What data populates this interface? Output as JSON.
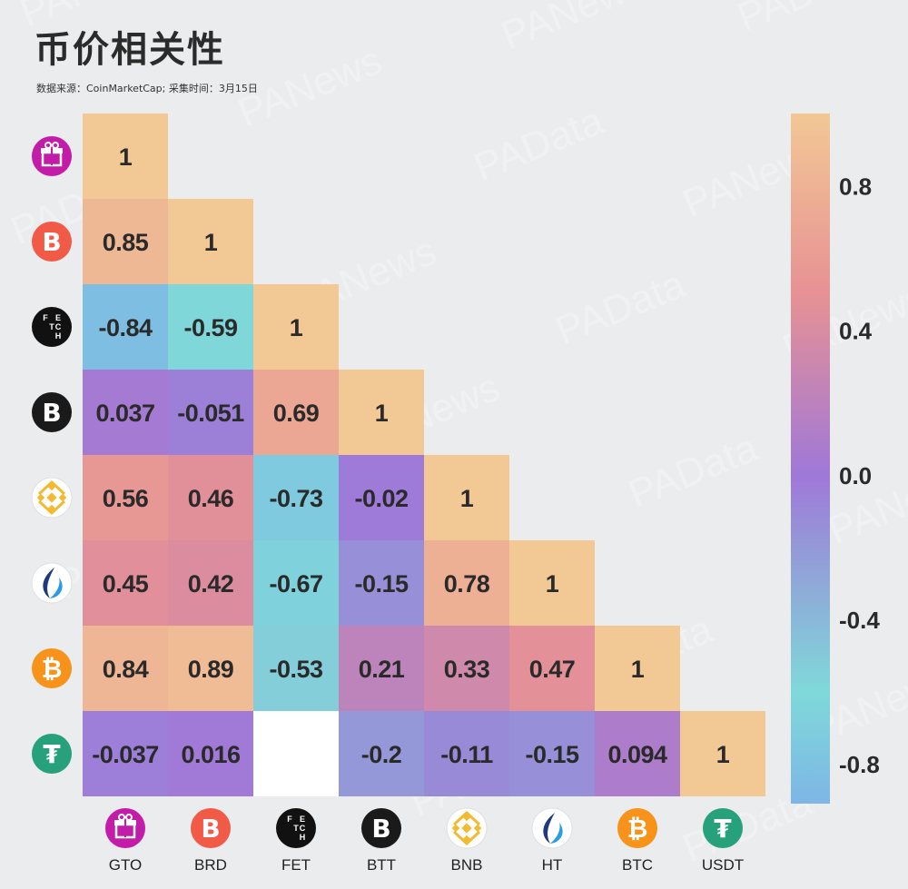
{
  "title": "币价相关性",
  "subtitle": "数据来源：CoinMarketCap;   采集时间：3月15日",
  "watermark": [
    "PANews",
    "PAData"
  ],
  "chart_data": {
    "type": "heatmap",
    "layout": "lower-triangle",
    "coins": [
      "GTO",
      "BRD",
      "FET",
      "BTT",
      "BNB",
      "HT",
      "BTC",
      "USDT"
    ],
    "matrix": [
      [
        "1"
      ],
      [
        "0.85",
        "1"
      ],
      [
        "-0.84",
        "-0.59",
        "1"
      ],
      [
        "0.037",
        "-0.051",
        "0.69",
        "1"
      ],
      [
        "0.56",
        "0.46",
        "-0.73",
        "-0.02",
        "1"
      ],
      [
        "0.45",
        "0.42",
        "-0.67",
        "-0.15",
        "0.78",
        "1"
      ],
      [
        "0.84",
        "0.89",
        "-0.53",
        "0.21",
        "0.33",
        "0.47",
        "1"
      ],
      [
        "-0.037",
        "0.016",
        null,
        "-0.2",
        "-0.11",
        "-0.15",
        "0.094",
        "1"
      ]
    ],
    "colorbar": {
      "ticks": [
        "0.8",
        "0.4",
        "0.0",
        "-0.4",
        "-0.8"
      ],
      "range": [
        -0.91,
        1.0
      ],
      "colors": {
        "-0.91": "#7eb6e6",
        "-0.6": "#7fd9d9",
        "0.0": "#9f78d8",
        "0.5": "#e79194",
        "1.0": "#f2c895"
      }
    },
    "icons": {
      "GTO": {
        "bg": "#c31ca8",
        "glyph": "gift-icon"
      },
      "BRD": {
        "bg": "#f15a46",
        "glyph": "B"
      },
      "FET": {
        "bg": "#111111",
        "glyph": "fetch-icon"
      },
      "BTT": {
        "bg": "#1a1a1a",
        "glyph": "B"
      },
      "BNB": {
        "bg": "#ffffff",
        "glyph": "bnb-diamond-icon"
      },
      "HT": {
        "bg": "#ffffff",
        "glyph": "flame-icon"
      },
      "BTC": {
        "bg": "#f7931a",
        "glyph": "₿"
      },
      "USDT": {
        "bg": "#26a17b",
        "glyph": "₮"
      }
    }
  }
}
